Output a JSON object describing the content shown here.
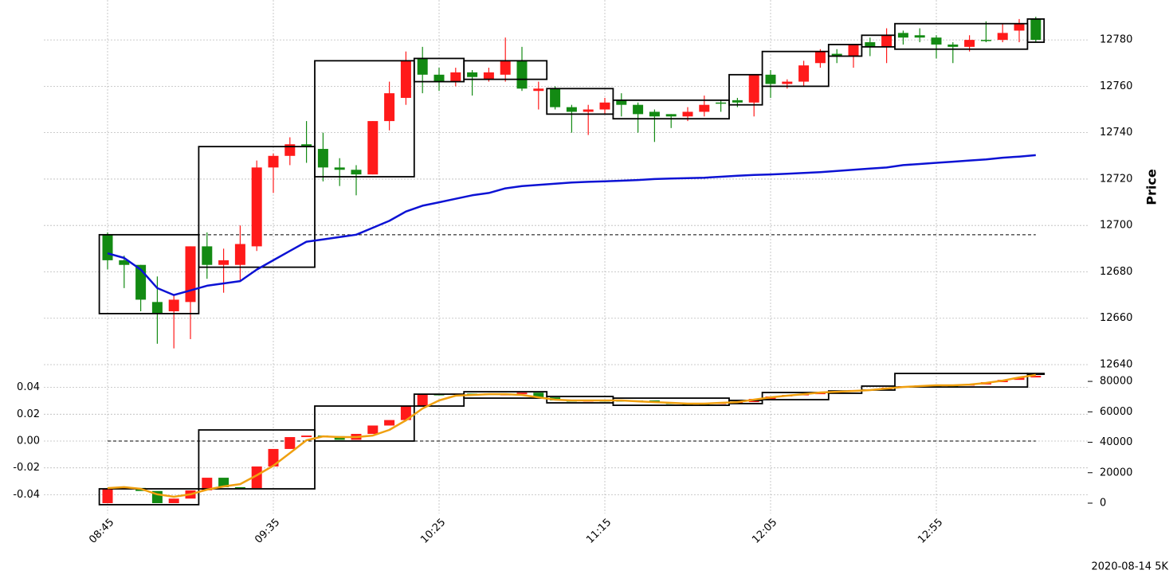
{
  "chart_data": [
    {
      "type": "candlestick",
      "categories": [
        "08:45",
        null,
        null,
        null,
        null,
        null,
        null,
        null,
        null,
        null,
        "09:35",
        null,
        null,
        null,
        null,
        null,
        null,
        null,
        null,
        null,
        "10:25",
        null,
        null,
        null,
        null,
        null,
        null,
        null,
        null,
        null,
        "11:15",
        null,
        null,
        null,
        null,
        null,
        null,
        null,
        null,
        null,
        "12:05",
        null,
        null,
        null,
        null,
        null,
        null,
        null,
        null,
        null,
        "12:55",
        null,
        null,
        null,
        null,
        null,
        null
      ],
      "open": [
        12696,
        12685,
        12683,
        12667,
        12663,
        12667,
        12691,
        12683,
        12683,
        12691,
        12725,
        12730,
        12735,
        12733,
        12725,
        12724,
        12722,
        12745,
        12755,
        12772,
        12765,
        12762,
        12766,
        12763,
        12765,
        12771,
        12758,
        12759,
        12751,
        12749,
        12750,
        12754,
        12752,
        12749,
        12748,
        12747,
        12749,
        12753,
        12754,
        12753,
        12765,
        12761,
        12762,
        12770,
        12774,
        12773,
        12779,
        12777,
        12783,
        12782,
        12781,
        12778,
        12777,
        12780,
        12780,
        12784,
        12789
      ],
      "high": [
        12697,
        12687,
        12683,
        12678,
        12670,
        12691,
        12697,
        12690,
        12700,
        12728,
        12731,
        12738,
        12745,
        12740,
        12729,
        12726,
        12745,
        12762,
        12775,
        12777,
        12768,
        12768,
        12767,
        12768,
        12781,
        12777,
        12762,
        12760,
        12752,
        12752,
        12755,
        12757,
        12753,
        12750,
        12748,
        12751,
        12756,
        12754,
        12755,
        12765,
        12767,
        12763,
        12771,
        12776,
        12776,
        12778,
        12781,
        12785,
        12784,
        12785,
        12782,
        12779,
        12782,
        12788,
        12787,
        12789,
        12790
      ],
      "low": [
        12681,
        12673,
        12663,
        12649,
        12647,
        12651,
        12677,
        12671,
        12676,
        12689,
        12714,
        12726,
        12727,
        12719,
        12717,
        12713,
        12722,
        12741,
        12752,
        12757,
        12758,
        12760,
        12756,
        12762,
        12762,
        12758,
        12750,
        12750,
        12740,
        12739,
        12748,
        12747,
        12740,
        12736,
        12742,
        12745,
        12747,
        12749,
        12751,
        12747,
        12755,
        12759,
        12760,
        12768,
        12770,
        12768,
        12773,
        12770,
        12778,
        12779,
        12772,
        12770,
        12775,
        12779,
        12779,
        12779,
        12779
      ],
      "close": [
        12685,
        12683,
        12668,
        12662,
        12668,
        12691,
        12683,
        12685,
        12692,
        12725,
        12730,
        12735,
        12734,
        12725,
        12724,
        12722,
        12745,
        12757,
        12771,
        12765,
        12762,
        12766,
        12764,
        12766,
        12771,
        12759,
        12759,
        12751,
        12749,
        12750,
        12753,
        12752,
        12748,
        12747,
        12747,
        12749,
        12752,
        12753,
        12753,
        12765,
        12761,
        12762,
        12769,
        12775,
        12773,
        12778,
        12777,
        12782,
        12781,
        12781,
        12778,
        12777,
        12780,
        12780,
        12783,
        12787,
        12780
      ],
      "up_color": "#ff1a1a",
      "down_color": "#138a13",
      "series": [
        {
          "color": "#0c12d4",
          "values": [
            12688,
            12686,
            12681,
            12673,
            12670,
            12672,
            12674,
            12675,
            12676,
            12681,
            12685,
            12689,
            12693,
            12694,
            12695,
            12696,
            12699,
            12702,
            12706,
            12708.5,
            12710,
            12711.5,
            12713,
            12714,
            12716,
            12717,
            12717.5,
            12718,
            12718.5,
            12718.8,
            12719,
            12719.3,
            12719.6,
            12720,
            12720.2,
            12720.4,
            12720.6,
            12721,
            12721.4,
            12721.8,
            12722,
            12722.3,
            12722.6,
            12723,
            12723.5,
            12724,
            12724.5,
            12725,
            12726,
            12726.5,
            12727,
            12727.5,
            12728,
            12728.5,
            12729.2,
            12729.7,
            12730.3
          ]
        }
      ],
      "hline": 12696,
      "boxes": [
        {
          "start": -0.5,
          "end": 5.5,
          "low": 12662,
          "high": 12696
        },
        {
          "start": 5.5,
          "end": 12.5,
          "low": 12682,
          "high": 12734
        },
        {
          "start": 12.5,
          "end": 18.5,
          "low": 12721,
          "high": 12771
        },
        {
          "start": 18.5,
          "end": 21.5,
          "low": 12762,
          "high": 12772
        },
        {
          "start": 21.5,
          "end": 26.5,
          "low": 12763,
          "high": 12771
        },
        {
          "start": 26.5,
          "end": 30.5,
          "low": 12748,
          "high": 12759
        },
        {
          "start": 30.5,
          "end": 37.5,
          "low": 12746,
          "high": 12754
        },
        {
          "start": 37.5,
          "end": 39.5,
          "low": 12752,
          "high": 12765
        },
        {
          "start": 39.5,
          "end": 43.5,
          "low": 12760,
          "high": 12775
        },
        {
          "start": 43.5,
          "end": 45.5,
          "low": 12773,
          "high": 12778
        },
        {
          "start": 45.5,
          "end": 47.5,
          "low": 12777,
          "high": 12782
        },
        {
          "start": 47.5,
          "end": 55.5,
          "low": 12776,
          "high": 12787
        },
        {
          "start": 55.5,
          "end": 56.5,
          "low": 12779,
          "high": 12789
        }
      ],
      "ylim": [
        12637.6,
        12797.2
      ],
      "yticks": [
        12640,
        12660,
        12680,
        12700,
        12720,
        12740,
        12760,
        12780
      ],
      "ylabel": "Price",
      "grid": true,
      "annotation": "2020-08-14 5K"
    },
    {
      "type": "candlestick",
      "open": [
        0,
        9400,
        10000,
        8000,
        0,
        3000,
        8400,
        16700,
        10500,
        9900,
        24100,
        35600,
        43400,
        44400,
        44000,
        41600,
        45500,
        51000,
        54600,
        63900,
        71600,
        71600,
        72000,
        72000,
        71100,
        71600,
        72600,
        69500,
        67500,
        66900,
        67500,
        67500,
        67500,
        67500,
        65900,
        65400,
        65400,
        65400,
        65900,
        66400,
        68500,
        70100,
        71100,
        71600,
        72600,
        73200,
        74300,
        74800,
        75900,
        76900,
        77400,
        77400,
        77400,
        78000,
        79500,
        81000,
        82600
      ],
      "close": [
        9400,
        10000,
        8000,
        0,
        3000,
        8400,
        16700,
        10500,
        9900,
        24100,
        35600,
        43400,
        44400,
        44000,
        41600,
        45500,
        51000,
        54600,
        63900,
        71600,
        71600,
        72000,
        72000,
        71100,
        71600,
        72600,
        69500,
        67500,
        66900,
        67500,
        67500,
        67500,
        67500,
        65900,
        65400,
        65400,
        65400,
        65900,
        66400,
        68500,
        70100,
        71100,
        71600,
        72600,
        73200,
        74300,
        74800,
        75900,
        76900,
        77400,
        77400,
        77400,
        78000,
        79500,
        81000,
        82600,
        83700
      ],
      "candle_axis": "y2",
      "series": [
        {
          "color": "#f0a010",
          "axis": "y2",
          "values": [
            9900,
            10500,
            9400,
            5800,
            4200,
            5800,
            8900,
            11000,
            12500,
            18300,
            24600,
            32900,
            41300,
            43900,
            43400,
            43400,
            44400,
            48100,
            54400,
            62200,
            67500,
            70600,
            71100,
            71600,
            71600,
            71100,
            69500,
            68000,
            67500,
            67500,
            67500,
            67500,
            66900,
            66400,
            65900,
            65400,
            65400,
            65900,
            66400,
            68000,
            69500,
            70600,
            71600,
            72700,
            73200,
            73700,
            74300,
            75300,
            76300,
            76900,
            77400,
            77400,
            77900,
            79000,
            80500,
            82600,
            84200
          ]
        }
      ],
      "hline": 0,
      "boxes": [
        {
          "start": -0.5,
          "end": 5.5,
          "low": -1000,
          "high": 9400
        },
        {
          "start": 5.5,
          "end": 12.5,
          "low": 9400,
          "high": 48100
        },
        {
          "start": 12.5,
          "end": 18.5,
          "low": 40800,
          "high": 63800
        },
        {
          "start": 18.5,
          "end": 21.5,
          "low": 63800,
          "high": 71600
        },
        {
          "start": 21.5,
          "end": 26.5,
          "low": 69000,
          "high": 73200
        },
        {
          "start": 26.5,
          "end": 30.5,
          "low": 65900,
          "high": 70100
        },
        {
          "start": 30.5,
          "end": 37.5,
          "low": 64300,
          "high": 69000
        },
        {
          "start": 37.5,
          "end": 39.5,
          "low": 65400,
          "high": 67500
        },
        {
          "start": 39.5,
          "end": 43.5,
          "low": 68000,
          "high": 72700
        },
        {
          "start": 43.5,
          "end": 45.5,
          "low": 72200,
          "high": 73700
        },
        {
          "start": 45.5,
          "end": 47.5,
          "low": 74300,
          "high": 76900
        },
        {
          "start": 47.5,
          "end": 55.5,
          "low": 76300,
          "high": 85200
        },
        {
          "start": 55.5,
          "end": 56.5,
          "low": 84700,
          "high": 85200
        }
      ],
      "ylim": [
        -0.054,
        0.054
      ],
      "yticks": [
        -0.04,
        -0.02,
        {
          "value": 0,
          "label": "0.00"
        },
        0.02,
        0.04
      ],
      "y2lim": [
        -6800,
        88400
      ],
      "y2ticks": [
        0,
        20000,
        40000,
        60000,
        80000
      ],
      "grid": true
    }
  ]
}
